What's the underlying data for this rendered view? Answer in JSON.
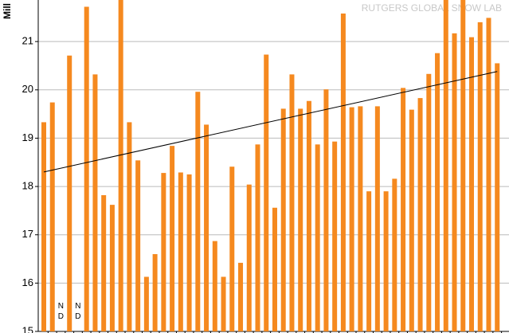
{
  "chart_data": {
    "type": "bar",
    "y_label": "Mill",
    "watermark": "RUTGERS GLOBAL SNOW LAB",
    "color": "#f5891f",
    "grid": true,
    "ylim": [
      15,
      21.86
    ],
    "yticks": [
      15,
      16,
      17,
      18,
      19,
      20,
      21
    ],
    "categories": [
      null,
      null,
      null,
      null,
      null,
      null,
      null,
      null,
      null,
      null,
      null,
      null,
      null,
      null,
      null,
      null,
      null,
      null,
      null,
      null,
      null,
      null,
      null,
      null,
      null,
      null,
      null,
      null,
      null,
      null,
      null,
      null,
      null,
      null,
      null,
      null,
      null,
      null,
      null,
      null,
      null,
      null,
      null,
      null,
      null,
      null,
      null,
      null,
      null,
      null,
      null,
      null,
      null,
      null
    ],
    "values": [
      19.33,
      19.74,
      null,
      20.71,
      null,
      21.72,
      20.32,
      17.82,
      17.62,
      21.9,
      19.33,
      18.54,
      16.13,
      16.6,
      18.28,
      18.84,
      18.29,
      18.25,
      19.96,
      19.28,
      16.87,
      16.13,
      18.41,
      16.42,
      18.04,
      18.87,
      20.73,
      17.56,
      19.61,
      20.32,
      19.61,
      19.77,
      18.87,
      20.01,
      18.93,
      21.58,
      19.64,
      19.66,
      17.9,
      19.66,
      17.9,
      18.16,
      20.04,
      19.59,
      19.83,
      20.33,
      20.76,
      21.9,
      21.17,
      21.9,
      21.09,
      21.4,
      21.49,
      20.55
    ],
    "value_labels": [
      null,
      null,
      "ND",
      null,
      "ND",
      null,
      null,
      null,
      null,
      null,
      null,
      null,
      null,
      null,
      null,
      null,
      null,
      null,
      null,
      null,
      null,
      null,
      null,
      null,
      null,
      null,
      null,
      null,
      null,
      null,
      null,
      null,
      null,
      null,
      null,
      null,
      null,
      null,
      null,
      null,
      null,
      null,
      null,
      null,
      null,
      null,
      null,
      null,
      null,
      null,
      null,
      null,
      null,
      null
    ],
    "trend_values": [
      18.3,
      20.38
    ]
  }
}
